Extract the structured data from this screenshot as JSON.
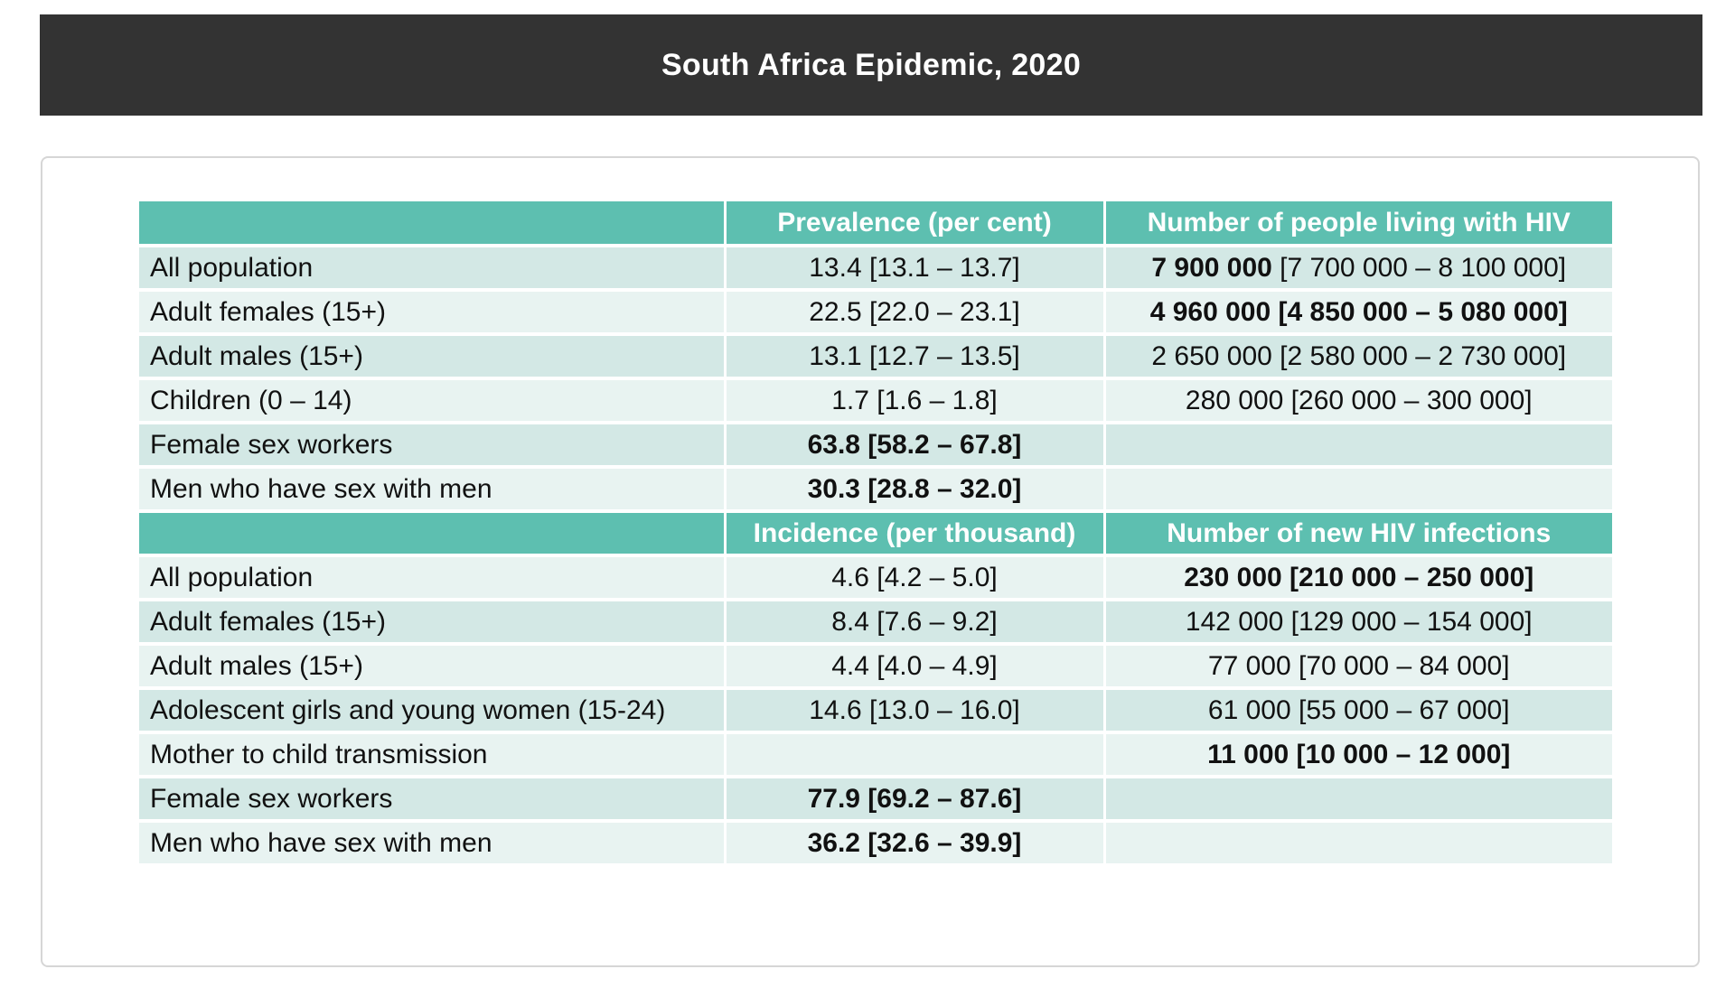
{
  "title": "South Africa Epidemic, 2020",
  "colors": {
    "title_bg": "#333333",
    "header_bg": "#5dbfb0",
    "row_dark": "#d3e8e5",
    "row_light": "#e8f3f1"
  },
  "section1": {
    "headers": [
      "",
      "Prevalence (per cent)",
      "Number of people living with HIV"
    ],
    "rows": [
      {
        "label": "All population",
        "value": "13.4 [13.1 – 13.7]",
        "count_bold": "7 900 000",
        "count_rest": " [7 700 000 – 8 100 000]"
      },
      {
        "label": "Adult females (15+)",
        "value": "22.5 [22.0 – 23.1]",
        "count_bold": "4 960 000 [4 850 000 – 5 080 000]",
        "count_rest": ""
      },
      {
        "label": "Adult males (15+)",
        "value": "13.1 [12.7 – 13.5]",
        "count_bold": "",
        "count_rest": "2 650 000 [2 580 000 – 2 730 000]"
      },
      {
        "label": "Children (0 – 14)",
        "value": "1.7 [1.6 – 1.8]",
        "count_bold": "",
        "count_rest": "280 000 [260 000 – 300 000]"
      },
      {
        "label": "Female sex workers",
        "value_bold": "63.8 [58.2 – 67.8]",
        "count_rest": ""
      },
      {
        "label": "Men who have sex with men",
        "value_bold": "30.3 [28.8 – 32.0]",
        "count_rest": ""
      }
    ]
  },
  "section2": {
    "headers": [
      "",
      "Incidence (per thousand)",
      "Number of new HIV infections"
    ],
    "rows": [
      {
        "label": "All population",
        "value": "4.6 [4.2 – 5.0]",
        "count_bold": "230 000 [210 000 – 250 000]"
      },
      {
        "label": "Adult females (15+)",
        "value": "8.4 [7.6 – 9.2]",
        "count": "142 000 [129 000 – 154 000]"
      },
      {
        "label": "Adult males (15+)",
        "value": "4.4 [4.0 – 4.9]",
        "count": "77 000 [70 000 – 84 000]"
      },
      {
        "label": "Adolescent girls and young women (15-24)",
        "value": "14.6 [13.0 – 16.0]",
        "count": "61 000 [55 000 – 67 000]"
      },
      {
        "label": "Mother to child transmission",
        "value": "",
        "count_bold": "11 000 [10 000 – 12 000]"
      },
      {
        "label": "Female sex workers",
        "value_bold": "77.9 [69.2 – 87.6]",
        "count": ""
      },
      {
        "label": "Men who have sex with men",
        "value_bold": "36.2 [32.6 – 39.9]",
        "count": ""
      }
    ]
  }
}
